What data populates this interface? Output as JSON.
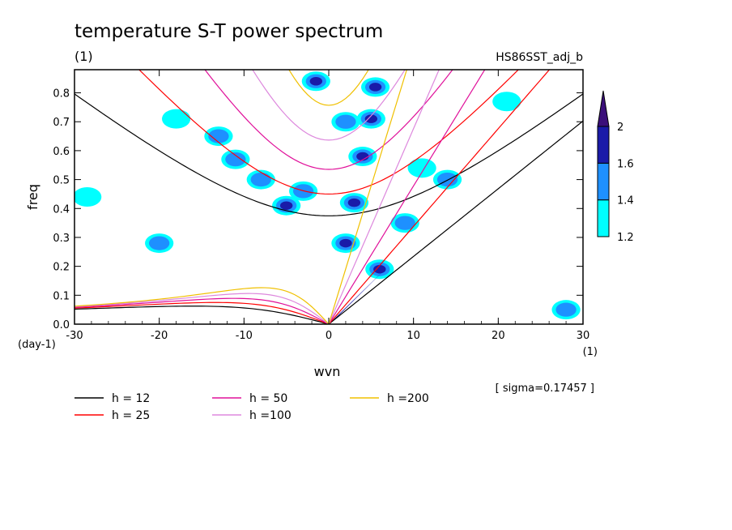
{
  "chart_data": {
    "type": "heatmap",
    "title": "temperature S-T power spectrum",
    "units_left": "(1)",
    "dataset": "HS86SST_adj_b",
    "xlabel": "wvn",
    "ylabel": "freq",
    "x_unit": "(1)",
    "y_unit": "(day-1)",
    "xlim": [
      -30,
      30
    ],
    "ylim": [
      0,
      0.88
    ],
    "x_ticks": [
      "-30",
      "-20",
      "-10",
      "0",
      "10",
      "20",
      "30"
    ],
    "x_tick_values": [
      -30,
      -20,
      -10,
      0,
      10,
      20,
      30
    ],
    "y_ticks": [
      "0.0",
      "0.1",
      "0.2",
      "0.3",
      "0.4",
      "0.5",
      "0.6",
      "0.7",
      "0.8"
    ],
    "y_tick_values": [
      0,
      0.1,
      0.2,
      0.3,
      0.4,
      0.5,
      0.6,
      0.7,
      0.8
    ],
    "sigma_note": "[ sigma=0.17457 ]",
    "colorbar": {
      "levels": [
        "1.2",
        "1.4",
        "1.6",
        "2"
      ],
      "level_values": [
        1.2,
        1.4,
        1.6,
        2.0
      ],
      "colors": [
        "#00ffff",
        "#1e90ff",
        "#1a1aa8",
        "#3b0f7a"
      ]
    },
    "contour_blobs": [
      {
        "x": -28.5,
        "y": 0.44,
        "level": 1
      },
      {
        "x": -20,
        "y": 0.28,
        "level": 2
      },
      {
        "x": -18,
        "y": 0.71,
        "level": 1
      },
      {
        "x": -13,
        "y": 0.65,
        "level": 2
      },
      {
        "x": -11,
        "y": 0.57,
        "level": 2
      },
      {
        "x": -8,
        "y": 0.5,
        "level": 2
      },
      {
        "x": -5,
        "y": 0.41,
        "level": 3
      },
      {
        "x": -3,
        "y": 0.46,
        "level": 2
      },
      {
        "x": -1.5,
        "y": 0.84,
        "level": 3
      },
      {
        "x": 2,
        "y": 0.7,
        "level": 2
      },
      {
        "x": 4,
        "y": 0.58,
        "level": 3
      },
      {
        "x": 5,
        "y": 0.71,
        "level": 3
      },
      {
        "x": 5.5,
        "y": 0.82,
        "level": 3
      },
      {
        "x": 3,
        "y": 0.42,
        "level": 3
      },
      {
        "x": 2,
        "y": 0.28,
        "level": 3
      },
      {
        "x": 6,
        "y": 0.19,
        "level": 3
      },
      {
        "x": 9,
        "y": 0.35,
        "level": 2
      },
      {
        "x": 11,
        "y": 0.54,
        "level": 1
      },
      {
        "x": 14,
        "y": 0.5,
        "level": 2
      },
      {
        "x": 21,
        "y": 0.77,
        "level": 1
      },
      {
        "x": 28,
        "y": 0.05,
        "level": 2
      }
    ],
    "kelvin_band": [
      [
        0,
        0
      ],
      [
        7,
        0.2
      ],
      [
        0.5,
        0.01
      ]
    ],
    "dispersion_curves": [
      {
        "name": "h = 12",
        "h": 12,
        "color": "#000000"
      },
      {
        "name": "h = 25",
        "h": 25,
        "color": "#ff0000"
      },
      {
        "name": "h = 50",
        "h": 50,
        "color": "#e0109a"
      },
      {
        "name": "h =100",
        "h": 100,
        "color": "#dd88dd"
      },
      {
        "name": "h =200",
        "h": 200,
        "color": "#f0c000"
      }
    ]
  }
}
